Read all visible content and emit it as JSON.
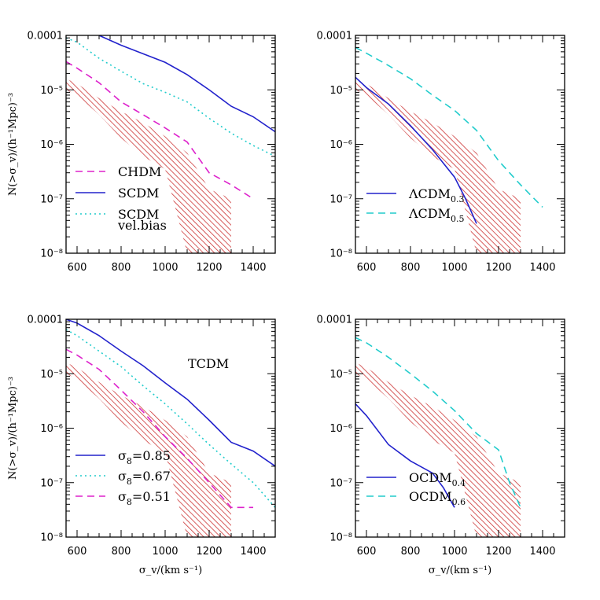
{
  "chart_data": [
    {
      "type": "line",
      "panel": "top-left",
      "ylabel": "N(>σ_v)/(h⁻¹Mpc)⁻³",
      "xlabel": "",
      "xlim": [
        550,
        1500
      ],
      "ylim": [
        1e-08,
        0.0001
      ],
      "yscale": "log",
      "x_ticks": [
        "600",
        "800",
        "1000",
        "1200",
        "1400"
      ],
      "y_ticks": [
        "0.0001",
        "10⁻⁵",
        "10⁻⁶",
        "10⁻⁷",
        "10⁻⁸"
      ],
      "band": {
        "color": "#cc2222",
        "upper": [
          [
            550,
            1.6e-05
          ],
          [
            600,
            1.3e-05
          ],
          [
            700,
            7e-06
          ],
          [
            800,
            4e-06
          ],
          [
            900,
            2.5e-06
          ],
          [
            1000,
            1.4e-06
          ],
          [
            1100,
            7e-07
          ],
          [
            1200,
            1.5e-07
          ],
          [
            1300,
            1e-07
          ]
        ],
        "lower": [
          [
            550,
            1e-05
          ],
          [
            600,
            8e-06
          ],
          [
            700,
            3.5e-06
          ],
          [
            800,
            1.3e-06
          ],
          [
            900,
            6e-07
          ],
          [
            1000,
            3.5e-07
          ],
          [
            1100,
            1e-08
          ],
          [
            1300,
            1e-08
          ]
        ]
      },
      "series": [
        {
          "name": "CHDM",
          "color": "#dd22cc",
          "dash": "dashed",
          "points": [
            [
              550,
              3.3e-05
            ],
            [
              600,
              2.5e-05
            ],
            [
              700,
              1.35e-05
            ],
            [
              800,
              6e-06
            ],
            [
              900,
              3.5e-06
            ],
            [
              1000,
              2e-06
            ],
            [
              1100,
              1.1e-06
            ],
            [
              1200,
              3e-07
            ],
            [
              1300,
              1.8e-07
            ],
            [
              1400,
              1e-07
            ]
          ]
        },
        {
          "name": "SCDM",
          "color": "#2222cc",
          "dash": "solid",
          "points": [
            [
              700,
              0.0001
            ],
            [
              800,
              6.6e-05
            ],
            [
              900,
              4.6e-05
            ],
            [
              1000,
              3.2e-05
            ],
            [
              1100,
              1.9e-05
            ],
            [
              1200,
              1e-05
            ],
            [
              1300,
              5e-06
            ],
            [
              1400,
              3.2e-06
            ],
            [
              1500,
              1.7e-06
            ]
          ]
        },
        {
          "name": "SCDM",
          "name2": "vel.bias",
          "color": "#22cccc",
          "dash": "dotted",
          "points": [
            [
              550,
              9e-05
            ],
            [
              600,
              7.5e-05
            ],
            [
              700,
              3.8e-05
            ],
            [
              800,
              2.2e-05
            ],
            [
              900,
              1.3e-05
            ],
            [
              1000,
              9e-06
            ],
            [
              1100,
              6e-06
            ],
            [
              1200,
              3e-06
            ],
            [
              1300,
              1.6e-06
            ],
            [
              1400,
              9.5e-07
            ],
            [
              1500,
              6e-07
            ]
          ]
        }
      ],
      "legend": [
        {
          "label": "CHDM"
        },
        {
          "label": "SCDM"
        },
        {
          "label": "SCDM",
          "sub": "vel.bias"
        }
      ]
    },
    {
      "type": "line",
      "panel": "top-right",
      "ylabel": "",
      "xlabel": "",
      "xlim": [
        550,
        1500
      ],
      "ylim": [
        1e-08,
        0.0001
      ],
      "yscale": "log",
      "x_ticks": [
        "600",
        "800",
        "1000",
        "1200",
        "1400"
      ],
      "y_ticks": [
        "0.0001",
        "10⁻⁵",
        "10⁻⁶",
        "10⁻⁷",
        "10⁻⁸"
      ],
      "band": {
        "color": "#cc2222",
        "upper": [
          [
            550,
            1.6e-05
          ],
          [
            600,
            1.3e-05
          ],
          [
            700,
            7e-06
          ],
          [
            800,
            4e-06
          ],
          [
            900,
            2.5e-06
          ],
          [
            1000,
            1.4e-06
          ],
          [
            1100,
            7e-07
          ],
          [
            1200,
            1.5e-07
          ],
          [
            1300,
            1e-07
          ]
        ],
        "lower": [
          [
            550,
            1e-05
          ],
          [
            600,
            8e-06
          ],
          [
            700,
            3.5e-06
          ],
          [
            800,
            1.3e-06
          ],
          [
            900,
            6e-07
          ],
          [
            1000,
            3.5e-07
          ],
          [
            1100,
            1e-08
          ],
          [
            1300,
            1e-08
          ]
        ]
      },
      "series": [
        {
          "name": "ΛCDM",
          "sub": "0.3",
          "color": "#2222cc",
          "dash": "solid",
          "points": [
            [
              550,
              1.7e-05
            ],
            [
              600,
              1.1e-05
            ],
            [
              700,
              5.5e-06
            ],
            [
              800,
              2.2e-06
            ],
            [
              900,
              8e-07
            ],
            [
              1000,
              2.5e-07
            ],
            [
              1050,
              1e-07
            ],
            [
              1100,
              3.5e-08
            ]
          ]
        },
        {
          "name": "ΛCDM",
          "sub": "0.5",
          "color": "#22cccc",
          "dash": "dashed",
          "points": [
            [
              550,
              6e-05
            ],
            [
              600,
              4.7e-05
            ],
            [
              700,
              2.8e-05
            ],
            [
              800,
              1.6e-05
            ],
            [
              900,
              8e-06
            ],
            [
              1000,
              4.2e-06
            ],
            [
              1100,
              1.8e-06
            ],
            [
              1200,
              5e-07
            ],
            [
              1300,
              1.8e-07
            ],
            [
              1400,
              7e-08
            ]
          ]
        }
      ],
      "legend": [
        {
          "label": "ΛCDM",
          "sub": "0.3"
        },
        {
          "label": "ΛCDM",
          "sub": "0.5"
        }
      ]
    },
    {
      "type": "line",
      "panel": "bottom-left",
      "ylabel": "N(>σ_v)/(h⁻¹Mpc)⁻³",
      "xlabel": "σ_v/(km s⁻¹)",
      "xlim": [
        550,
        1500
      ],
      "ylim": [
        1e-08,
        0.0001
      ],
      "yscale": "log",
      "x_ticks": [
        "600",
        "800",
        "1000",
        "1200",
        "1400"
      ],
      "y_ticks": [
        "0.0001",
        "10⁻⁵",
        "10⁻⁶",
        "10⁻⁷",
        "10⁻⁸"
      ],
      "annotation": "TCDM",
      "band": {
        "color": "#cc2222",
        "upper": [
          [
            550,
            1.6e-05
          ],
          [
            600,
            1.3e-05
          ],
          [
            700,
            7e-06
          ],
          [
            800,
            4e-06
          ],
          [
            900,
            2.5e-06
          ],
          [
            1000,
            1.4e-06
          ],
          [
            1100,
            7e-07
          ],
          [
            1200,
            1.5e-07
          ],
          [
            1300,
            1e-07
          ]
        ],
        "lower": [
          [
            550,
            1e-05
          ],
          [
            600,
            8e-06
          ],
          [
            700,
            3.5e-06
          ],
          [
            800,
            1.3e-06
          ],
          [
            900,
            6e-07
          ],
          [
            1000,
            3.5e-07
          ],
          [
            1100,
            1e-08
          ],
          [
            1300,
            1e-08
          ]
        ]
      },
      "series": [
        {
          "name": "σ8=0.85",
          "color": "#2222cc",
          "dash": "solid",
          "points": [
            [
              550,
              0.0001
            ],
            [
              600,
              8.5e-05
            ],
            [
              700,
              5e-05
            ],
            [
              800,
              2.6e-05
            ],
            [
              900,
              1.4e-05
            ],
            [
              1000,
              6.8e-06
            ],
            [
              1100,
              3.4e-06
            ],
            [
              1200,
              1.4e-06
            ],
            [
              1300,
              5.5e-07
            ],
            [
              1400,
              3.8e-07
            ],
            [
              1500,
              2e-07
            ]
          ]
        },
        {
          "name": "σ8=0.67",
          "color": "#22cccc",
          "dash": "dotted",
          "points": [
            [
              550,
              6.5e-05
            ],
            [
              600,
              5e-05
            ],
            [
              700,
              2.6e-05
            ],
            [
              800,
              1.35e-05
            ],
            [
              900,
              6e-06
            ],
            [
              1000,
              2.8e-06
            ],
            [
              1100,
              1.2e-06
            ],
            [
              1200,
              5e-07
            ],
            [
              1300,
              2.2e-07
            ],
            [
              1400,
              1e-07
            ],
            [
              1500,
              3.5e-08
            ]
          ]
        },
        {
          "name": "σ8=0.51",
          "color": "#dd22cc",
          "dash": "dashed",
          "points": [
            [
              550,
              2.8e-05
            ],
            [
              600,
              2.2e-05
            ],
            [
              700,
              1.2e-05
            ],
            [
              800,
              5e-06
            ],
            [
              900,
              2e-06
            ],
            [
              1000,
              7e-07
            ],
            [
              1100,
              2.8e-07
            ],
            [
              1200,
              1e-07
            ],
            [
              1300,
              3.5e-08
            ],
            [
              1400,
              3.5e-08
            ]
          ]
        }
      ],
      "legend": [
        {
          "label": "σ",
          "sub": "8",
          "tail": "=0.85"
        },
        {
          "label": "σ",
          "sub": "8",
          "tail": "=0.67"
        },
        {
          "label": "σ",
          "sub": "8",
          "tail": "=0.51"
        }
      ]
    },
    {
      "type": "line",
      "panel": "bottom-right",
      "ylabel": "",
      "xlabel": "σ_v/(km s⁻¹)",
      "xlim": [
        550,
        1500
      ],
      "ylim": [
        1e-08,
        0.0001
      ],
      "yscale": "log",
      "x_ticks": [
        "600",
        "800",
        "1000",
        "1200",
        "1400"
      ],
      "y_ticks": [
        "0.0001",
        "10⁻⁵",
        "10⁻⁶",
        "10⁻⁷",
        "10⁻⁸"
      ],
      "band": {
        "color": "#cc2222",
        "upper": [
          [
            550,
            1.6e-05
          ],
          [
            600,
            1.3e-05
          ],
          [
            700,
            7e-06
          ],
          [
            800,
            4e-06
          ],
          [
            900,
            2.5e-06
          ],
          [
            1000,
            1.4e-06
          ],
          [
            1100,
            7e-07
          ],
          [
            1200,
            1.5e-07
          ],
          [
            1300,
            1e-07
          ]
        ],
        "lower": [
          [
            550,
            1e-05
          ],
          [
            600,
            8e-06
          ],
          [
            700,
            3.5e-06
          ],
          [
            800,
            1.3e-06
          ],
          [
            900,
            6e-07
          ],
          [
            1000,
            3.5e-07
          ],
          [
            1100,
            1e-08
          ],
          [
            1300,
            1e-08
          ]
        ]
      },
      "series": [
        {
          "name": "OCDM",
          "sub": "0.4",
          "color": "#2222cc",
          "dash": "solid",
          "points": [
            [
              550,
              2.8e-06
            ],
            [
              600,
              1.7e-06
            ],
            [
              700,
              5e-07
            ],
            [
              800,
              2.5e-07
            ],
            [
              900,
              1.5e-07
            ],
            [
              950,
              8e-08
            ],
            [
              1000,
              3.5e-08
            ]
          ]
        },
        {
          "name": "OCDM",
          "sub": "0.6",
          "color": "#22cccc",
          "dash": "dashed",
          "points": [
            [
              550,
              4.6e-05
            ],
            [
              600,
              3.7e-05
            ],
            [
              700,
              2e-05
            ],
            [
              800,
              1e-05
            ],
            [
              900,
              4.8e-06
            ],
            [
              1000,
              2.1e-06
            ],
            [
              1100,
              8e-07
            ],
            [
              1200,
              4e-07
            ],
            [
              1250,
              1e-07
            ],
            [
              1300,
              3.5e-08
            ]
          ]
        }
      ],
      "legend": [
        {
          "label": "OCDM",
          "sub": "0.4"
        },
        {
          "label": "OCDM",
          "sub": "0.6"
        }
      ]
    }
  ]
}
